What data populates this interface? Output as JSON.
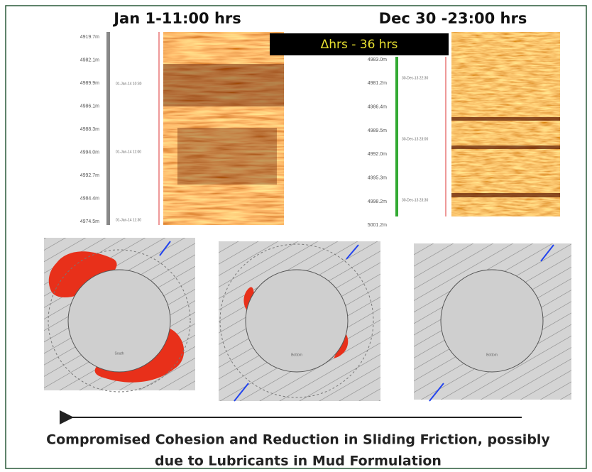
{
  "left_log": {
    "title": "Jan 1-11:00 hrs",
    "depths": [
      "4919.7m",
      "4982.1m",
      "4989.9m",
      "4986.1m",
      "4988.3m",
      "4994.0m",
      "4992.7m",
      "4984.4m",
      "4974.5m"
    ],
    "times": [
      "01-Jan-14 10:30",
      "01-Jan-14 11:00",
      "01-Jan-14 11:30"
    ]
  },
  "right_log": {
    "title": "Dec 30 -23:00 hrs",
    "depths": [
      "4983.0m",
      "4981.2m",
      "4986.4m",
      "4989.5m",
      "4992.0m",
      "4995.3m",
      "4998.2m",
      "5001.2m"
    ],
    "times": [
      "30-Dec-13 22:30",
      "30-Dec-13 23:00",
      "30-Dec-13 23:30"
    ]
  },
  "banner": "Δhrs - 36 hrs",
  "sections": [
    "South",
    "Bottom",
    "Bottom"
  ],
  "caption": [
    "Compromised Cohesion and Reduction in Sliding Friction, possibly",
    "due to Lubricants in Mud Formulation"
  ]
}
